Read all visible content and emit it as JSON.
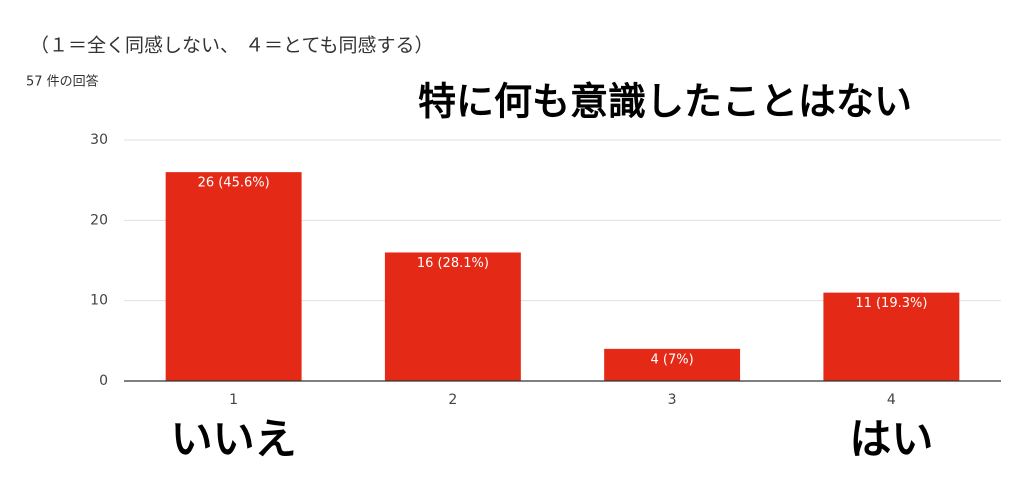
{
  "chart_data": {
    "type": "bar",
    "subtitle": "（１＝全く同感しない、 ４＝とても同感する）",
    "response_count": "57 件の回答",
    "title": "特に何も意識したことはない",
    "categories": [
      "1",
      "2",
      "3",
      "4"
    ],
    "values": [
      26,
      16,
      4,
      11
    ],
    "value_labels": [
      "26 (45.6%)",
      "16 (28.1%)",
      "4 (7%)",
      "11 (19.3%)"
    ],
    "color": "#e42a17",
    "ylim": [
      0,
      30
    ],
    "yticks": [
      0,
      10,
      20,
      30
    ],
    "grid": true,
    "annotations": [
      "いいえ",
      "はい"
    ]
  }
}
